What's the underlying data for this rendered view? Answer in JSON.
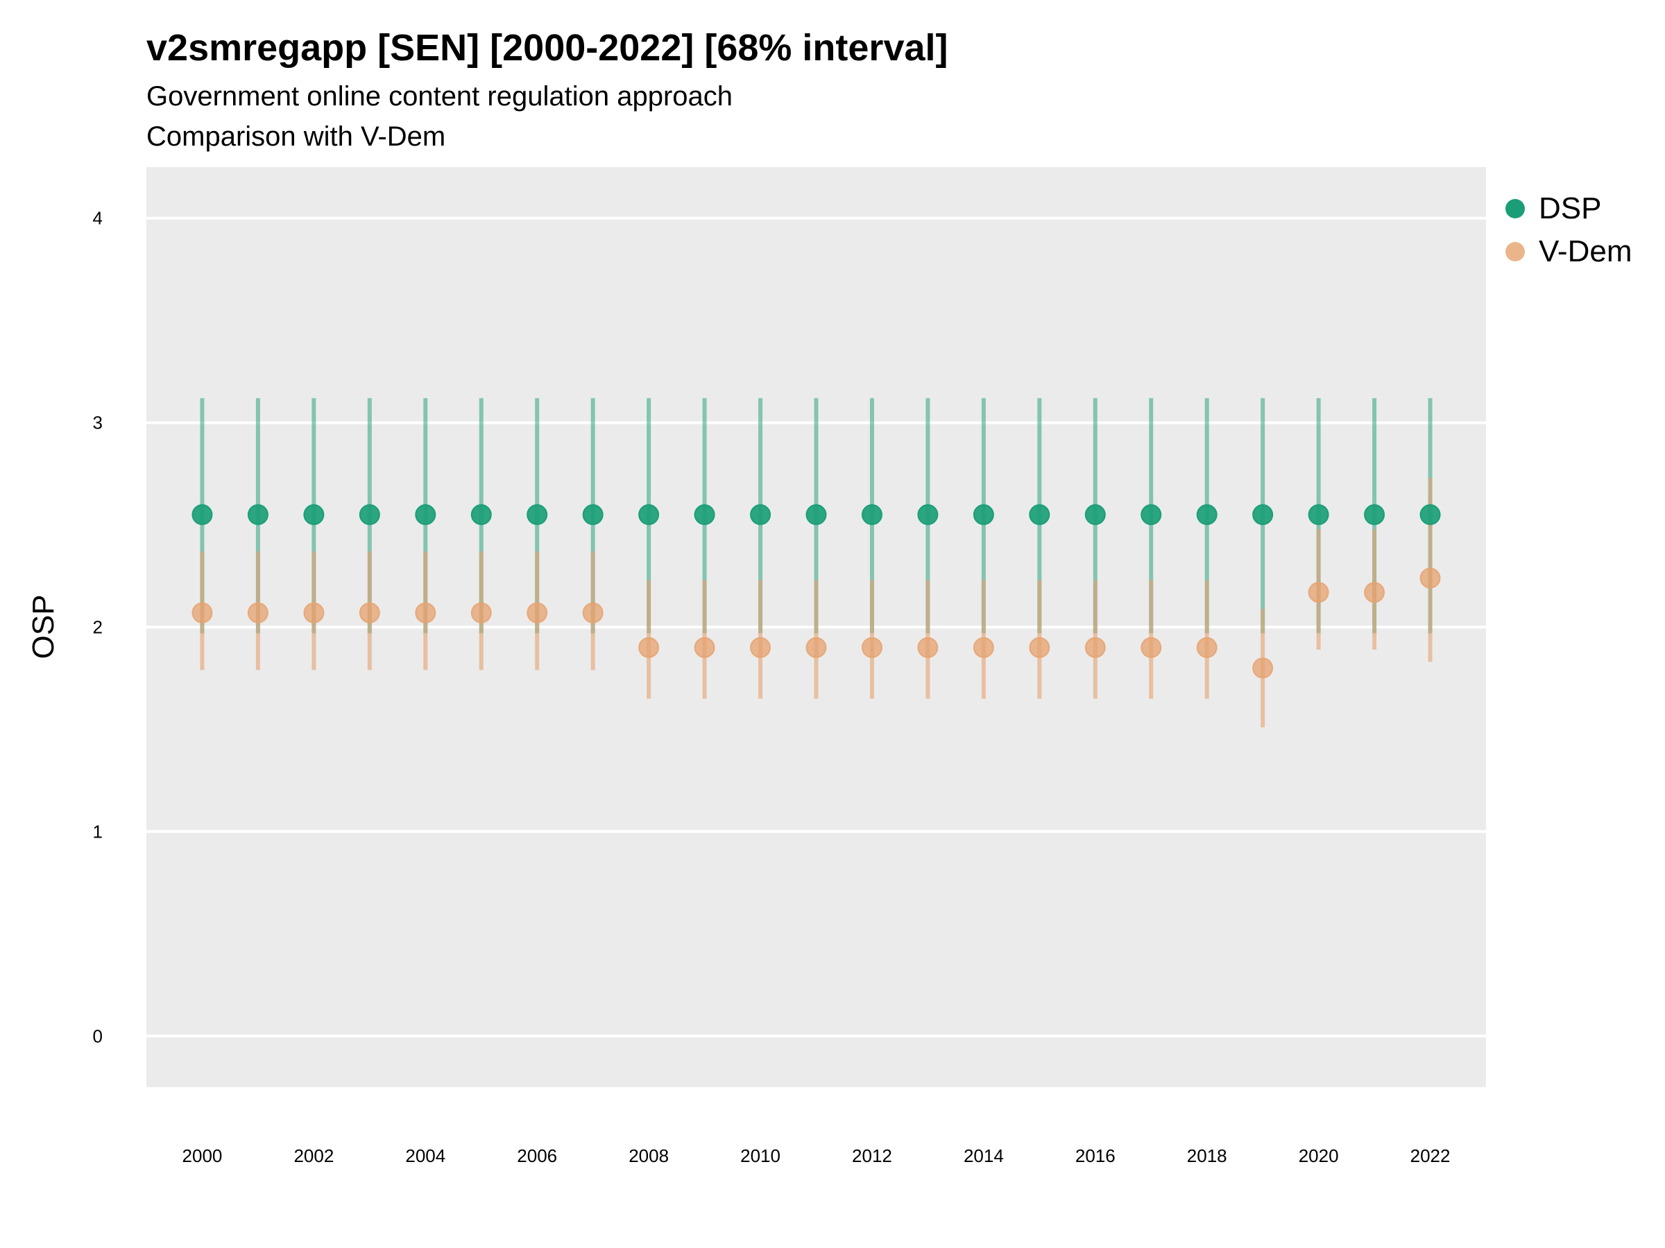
{
  "title": "v2smregapp [SEN] [2000-2022] [68% interval]",
  "subtitle": "Government online content regulation approach",
  "caption": "Comparison with V-Dem",
  "colors": {
    "panel": "#EBEBEB",
    "grid": "#FFFFFF",
    "dsp": "#1B9E77",
    "vdem": "#E6A26F"
  },
  "chart_data": {
    "type": "scatter",
    "ylabel": "OSP",
    "xlabel": "",
    "ylim": [
      -0.25,
      4.25
    ],
    "xlim": [
      1999,
      2023
    ],
    "y_ticks": [
      "0",
      "1",
      "2",
      "3",
      "4"
    ],
    "x_ticks": [
      "2000",
      "2002",
      "2004",
      "2006",
      "2008",
      "2010",
      "2012",
      "2014",
      "2016",
      "2018",
      "2020",
      "2022"
    ],
    "grid": true,
    "legend_position": "right",
    "x": [
      2000,
      2001,
      2002,
      2003,
      2004,
      2005,
      2006,
      2007,
      2008,
      2009,
      2010,
      2011,
      2012,
      2013,
      2014,
      2015,
      2016,
      2017,
      2018,
      2019,
      2020,
      2021,
      2022
    ],
    "series": [
      {
        "name": "DSP",
        "values": [
          2.55,
          2.55,
          2.55,
          2.55,
          2.55,
          2.55,
          2.55,
          2.55,
          2.55,
          2.55,
          2.55,
          2.55,
          2.55,
          2.55,
          2.55,
          2.55,
          2.55,
          2.55,
          2.55,
          2.55,
          2.55,
          2.55,
          2.55
        ],
        "lower": [
          1.97,
          1.97,
          1.97,
          1.97,
          1.97,
          1.97,
          1.97,
          1.97,
          1.97,
          1.97,
          1.97,
          1.97,
          1.97,
          1.97,
          1.97,
          1.97,
          1.97,
          1.97,
          1.97,
          1.97,
          1.97,
          1.97,
          1.97
        ],
        "upper": [
          3.12,
          3.12,
          3.12,
          3.12,
          3.12,
          3.12,
          3.12,
          3.12,
          3.12,
          3.12,
          3.12,
          3.12,
          3.12,
          3.12,
          3.12,
          3.12,
          3.12,
          3.12,
          3.12,
          3.12,
          3.12,
          3.12,
          3.12
        ]
      },
      {
        "name": "V-Dem",
        "values": [
          2.07,
          2.07,
          2.07,
          2.07,
          2.07,
          2.07,
          2.07,
          2.07,
          1.9,
          1.9,
          1.9,
          1.9,
          1.9,
          1.9,
          1.9,
          1.9,
          1.9,
          1.9,
          1.9,
          1.8,
          2.17,
          2.17,
          2.24
        ],
        "lower": [
          1.79,
          1.79,
          1.79,
          1.79,
          1.79,
          1.79,
          1.79,
          1.79,
          1.65,
          1.65,
          1.65,
          1.65,
          1.65,
          1.65,
          1.65,
          1.65,
          1.65,
          1.65,
          1.65,
          1.51,
          1.89,
          1.89,
          1.83
        ],
        "upper": [
          2.37,
          2.37,
          2.37,
          2.37,
          2.37,
          2.37,
          2.37,
          2.37,
          2.23,
          2.23,
          2.23,
          2.23,
          2.23,
          2.23,
          2.23,
          2.23,
          2.23,
          2.23,
          2.23,
          2.09,
          2.48,
          2.48,
          2.73
        ]
      }
    ]
  }
}
